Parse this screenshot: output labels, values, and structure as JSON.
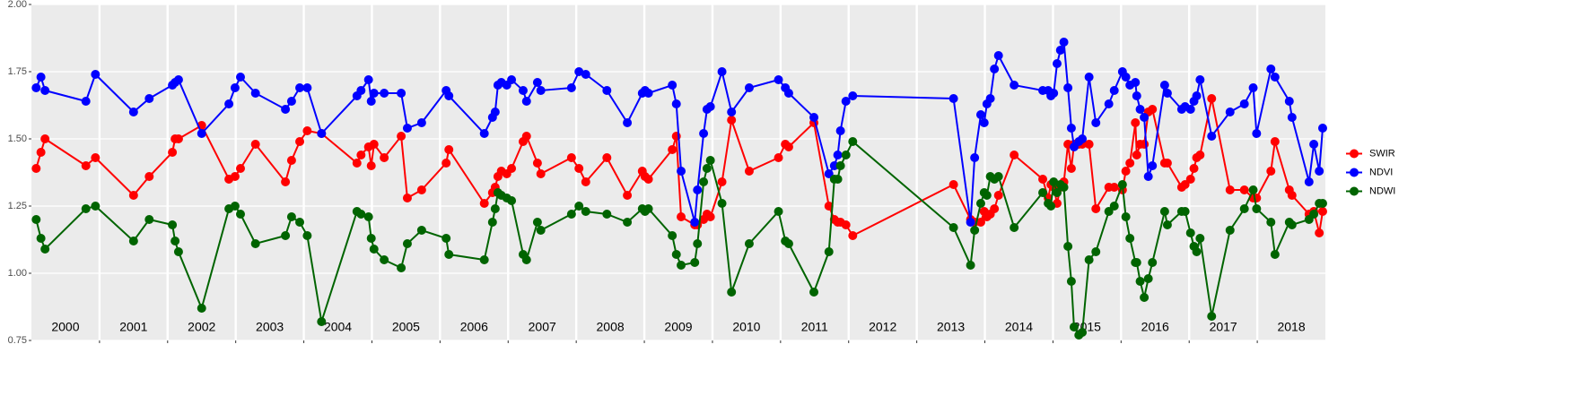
{
  "chart_data": {
    "type": "line",
    "x": [
      2000.07,
      2000.14,
      2000.2,
      2000.8,
      2000.94,
      2001.5,
      2001.73,
      2002.07,
      2002.11,
      2002.16,
      2002.5,
      2002.9,
      2002.99,
      2003.07,
      2003.29,
      2003.73,
      2003.82,
      2003.94,
      2004.05,
      2004.26,
      2004.78,
      2004.84,
      2004.95,
      2004.99,
      2005.03,
      2005.18,
      2005.43,
      2005.52,
      2005.73,
      2006.09,
      2006.13,
      2006.65,
      2006.77,
      2006.81,
      2006.85,
      2006.9,
      2006.98,
      2007.05,
      2007.22,
      2007.27,
      2007.43,
      2007.48,
      2007.93,
      2008.04,
      2008.14,
      2008.45,
      2008.75,
      2008.97,
      2009.01,
      2009.06,
      2009.41,
      2009.47,
      2009.54,
      2009.74,
      2009.78,
      2009.87,
      2009.92,
      2009.97,
      2010.14,
      2010.28,
      2010.54,
      2010.97,
      2011.07,
      2011.12,
      2011.49,
      2011.71,
      2011.79,
      2011.84,
      2011.88,
      2011.96,
      2012.06,
      2013.54,
      2013.79,
      2013.85,
      2013.94,
      2013.99,
      2014.03,
      2014.08,
      2014.14,
      2014.2,
      2014.43,
      2014.85,
      2014.93,
      2014.97,
      2015.01,
      2015.06,
      2015.11,
      2015.16,
      2015.22,
      2015.27,
      2015.31,
      2015.38,
      2015.43,
      2015.53,
      2015.63,
      2015.82,
      2015.9,
      2016.02,
      2016.07,
      2016.13,
      2016.21,
      2016.23,
      2016.28,
      2016.34,
      2016.4,
      2016.46,
      2016.64,
      2016.68,
      2016.89,
      2016.94,
      2017.02,
      2017.07,
      2017.11,
      2017.16,
      2017.33,
      2017.6,
      2017.81,
      2017.94,
      2017.99,
      2018.2,
      2018.26,
      2018.47,
      2018.51,
      2018.76,
      2018.83,
      2018.91,
      2018.96
    ],
    "series": [
      {
        "name": "SWIR",
        "color": "#ff0000",
        "values": [
          1.39,
          1.45,
          1.5,
          1.4,
          1.43,
          1.29,
          1.36,
          1.45,
          1.5,
          1.5,
          1.55,
          1.35,
          1.36,
          1.39,
          1.48,
          1.34,
          1.42,
          1.49,
          1.53,
          1.52,
          1.41,
          1.44,
          1.47,
          1.4,
          1.48,
          1.43,
          1.51,
          1.28,
          1.31,
          1.41,
          1.46,
          1.26,
          1.3,
          1.32,
          1.36,
          1.38,
          1.37,
          1.39,
          1.49,
          1.51,
          1.41,
          1.37,
          1.43,
          1.39,
          1.34,
          1.43,
          1.29,
          1.38,
          1.36,
          1.35,
          1.46,
          1.51,
          1.21,
          1.18,
          1.18,
          1.2,
          1.22,
          1.21,
          1.34,
          1.57,
          1.38,
          1.43,
          1.48,
          1.47,
          1.56,
          1.25,
          1.2,
          1.19,
          1.19,
          1.18,
          1.14,
          1.33,
          1.2,
          1.19,
          1.19,
          1.23,
          1.21,
          1.22,
          1.24,
          1.29,
          1.44,
          1.35,
          1.28,
          1.33,
          1.32,
          1.26,
          1.32,
          1.34,
          1.48,
          1.39,
          1.48,
          1.48,
          1.48,
          1.48,
          1.24,
          1.32,
          1.32,
          1.31,
          1.38,
          1.41,
          1.56,
          1.44,
          1.48,
          1.48,
          1.6,
          1.61,
          1.41,
          1.41,
          1.32,
          1.33,
          1.35,
          1.39,
          1.43,
          1.44,
          1.65,
          1.31,
          1.31,
          1.28,
          1.28,
          1.38,
          1.49,
          1.31,
          1.29,
          1.22,
          1.23,
          1.15,
          1.23
        ]
      },
      {
        "name": "NDVI",
        "color": "#0000ff",
        "values": [
          1.69,
          1.73,
          1.68,
          1.64,
          1.74,
          1.6,
          1.65,
          1.7,
          1.71,
          1.72,
          1.52,
          1.63,
          1.69,
          1.73,
          1.67,
          1.61,
          1.64,
          1.69,
          1.69,
          1.52,
          1.66,
          1.68,
          1.72,
          1.64,
          1.67,
          1.67,
          1.67,
          1.54,
          1.56,
          1.68,
          1.66,
          1.52,
          1.58,
          1.6,
          1.7,
          1.71,
          1.7,
          1.72,
          1.68,
          1.64,
          1.71,
          1.68,
          1.69,
          1.75,
          1.74,
          1.68,
          1.56,
          1.67,
          1.68,
          1.67,
          1.7,
          1.63,
          1.38,
          1.19,
          1.31,
          1.52,
          1.61,
          1.62,
          1.75,
          1.6,
          1.69,
          1.72,
          1.69,
          1.67,
          1.58,
          1.37,
          1.4,
          1.44,
          1.53,
          1.64,
          1.66,
          1.65,
          1.19,
          1.43,
          1.59,
          1.56,
          1.63,
          1.65,
          1.76,
          1.81,
          1.7,
          1.68,
          1.68,
          1.66,
          1.67,
          1.78,
          1.83,
          1.86,
          1.69,
          1.54,
          1.47,
          1.49,
          1.5,
          1.73,
          1.56,
          1.63,
          1.68,
          1.75,
          1.73,
          1.7,
          1.71,
          1.66,
          1.61,
          1.58,
          1.36,
          1.4,
          1.7,
          1.67,
          1.61,
          1.62,
          1.61,
          1.64,
          1.66,
          1.72,
          1.51,
          1.6,
          1.63,
          1.69,
          1.52,
          1.76,
          1.73,
          1.64,
          1.58,
          1.34,
          1.48,
          1.38,
          1.54
        ]
      },
      {
        "name": "NDWI",
        "color": "#006400",
        "values": [
          1.2,
          1.13,
          1.09,
          1.24,
          1.25,
          1.12,
          1.2,
          1.18,
          1.12,
          1.08,
          0.87,
          1.24,
          1.25,
          1.22,
          1.11,
          1.14,
          1.21,
          1.19,
          1.14,
          0.82,
          1.23,
          1.22,
          1.21,
          1.13,
          1.09,
          1.05,
          1.02,
          1.11,
          1.16,
          1.13,
          1.07,
          1.05,
          1.19,
          1.24,
          1.3,
          1.29,
          1.28,
          1.27,
          1.07,
          1.05,
          1.19,
          1.16,
          1.22,
          1.25,
          1.23,
          1.22,
          1.19,
          1.24,
          1.23,
          1.24,
          1.14,
          1.07,
          1.03,
          1.04,
          1.11,
          1.34,
          1.39,
          1.42,
          1.26,
          0.93,
          1.11,
          1.23,
          1.12,
          1.11,
          0.93,
          1.08,
          1.35,
          1.35,
          1.4,
          1.44,
          1.49,
          1.17,
          1.03,
          1.16,
          1.26,
          1.3,
          1.29,
          1.36,
          1.35,
          1.36,
          1.17,
          1.3,
          1.26,
          1.25,
          1.34,
          1.3,
          1.33,
          1.32,
          1.1,
          0.97,
          0.8,
          0.77,
          0.78,
          1.05,
          1.08,
          1.23,
          1.25,
          1.33,
          1.21,
          1.13,
          1.04,
          1.04,
          0.97,
          0.91,
          0.98,
          1.04,
          1.23,
          1.18,
          1.23,
          1.23,
          1.15,
          1.1,
          1.08,
          1.13,
          0.84,
          1.16,
          1.24,
          1.31,
          1.24,
          1.19,
          1.07,
          1.19,
          1.18,
          1.2,
          1.22,
          1.26,
          1.26
        ]
      }
    ],
    "xlim": [
      2000,
      2019
    ],
    "xgrid": [
      2001,
      2002,
      2003,
      2004,
      2005,
      2006,
      2007,
      2008,
      2009,
      2010,
      2011,
      2012,
      2013,
      2014,
      2015,
      2016,
      2017,
      2018
    ],
    "xticks": [
      {
        "value": 2000.5,
        "label": "2000"
      },
      {
        "value": 2001.5,
        "label": "2001"
      },
      {
        "value": 2002.5,
        "label": "2002"
      },
      {
        "value": 2003.5,
        "label": "2003"
      },
      {
        "value": 2004.5,
        "label": "2004"
      },
      {
        "value": 2005.5,
        "label": "2005"
      },
      {
        "value": 2006.5,
        "label": "2006"
      },
      {
        "value": 2007.5,
        "label": "2007"
      },
      {
        "value": 2008.5,
        "label": "2008"
      },
      {
        "value": 2009.5,
        "label": "2009"
      },
      {
        "value": 2010.5,
        "label": "2010"
      },
      {
        "value": 2011.5,
        "label": "2011"
      },
      {
        "value": 2012.5,
        "label": "2012"
      },
      {
        "value": 2013.5,
        "label": "2013"
      },
      {
        "value": 2014.5,
        "label": "2014"
      },
      {
        "value": 2015.5,
        "label": "2015"
      },
      {
        "value": 2016.5,
        "label": "2016"
      },
      {
        "value": 2017.5,
        "label": "2017"
      },
      {
        "value": 2018.5,
        "label": "2018"
      }
    ],
    "ylim": [
      0.75,
      2.0
    ],
    "yticks": [
      {
        "value": 0.75,
        "label": "0.75"
      },
      {
        "value": 1.0,
        "label": "1.00"
      },
      {
        "value": 1.25,
        "label": "1.25"
      },
      {
        "value": 1.5,
        "label": "1.50"
      },
      {
        "value": 1.75,
        "label": "1.75"
      },
      {
        "value": 2.0,
        "label": "2.00"
      }
    ],
    "grid": true,
    "legend": "right"
  }
}
